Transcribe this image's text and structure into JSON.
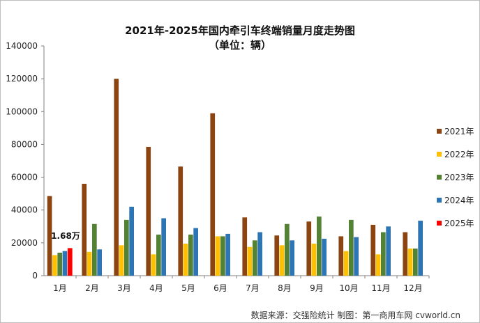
{
  "chart_data": {
    "type": "bar",
    "title": "2021年-2025年国内牵引车终端销量月度走势图",
    "subtitle": "（单位：辆）",
    "categories": [
      "1月",
      "2月",
      "3月",
      "4月",
      "5月",
      "6月",
      "7月",
      "8月",
      "9月",
      "10月",
      "11月",
      "12月"
    ],
    "series": [
      {
        "name": "2021年",
        "color": "#8B4513",
        "values": [
          48500,
          56000,
          120000,
          78500,
          66500,
          99000,
          35500,
          24500,
          33000,
          24000,
          31000,
          26500
        ]
      },
      {
        "name": "2022年",
        "color": "#FFC000",
        "values": [
          12500,
          14500,
          18500,
          13000,
          19500,
          24000,
          17500,
          18500,
          19500,
          15000,
          13000,
          16500
        ]
      },
      {
        "name": "2023年",
        "color": "#548235",
        "values": [
          14000,
          31500,
          34000,
          25000,
          25000,
          24000,
          21500,
          31500,
          36000,
          34000,
          26500,
          16500
        ]
      },
      {
        "name": "2024年",
        "color": "#2E75B6",
        "values": [
          15000,
          16000,
          42000,
          35000,
          29000,
          25500,
          26500,
          21500,
          22500,
          23500,
          30000,
          33500
        ]
      },
      {
        "name": "2025年",
        "color": "#FF0000",
        "values": [
          16800,
          null,
          null,
          null,
          null,
          null,
          null,
          null,
          null,
          null,
          null,
          null
        ]
      }
    ],
    "annotation": {
      "text": "1.68万",
      "category": "1月"
    },
    "yticks": [
      "0",
      "20000",
      "40000",
      "60000",
      "80000",
      "100000",
      "120000",
      "140000"
    ],
    "ylim": [
      0,
      140000
    ],
    "legend_position": "right",
    "grid": false
  },
  "source_text": "数据来源：交强险统计   制图：第一商用车网 cvworld.cn"
}
